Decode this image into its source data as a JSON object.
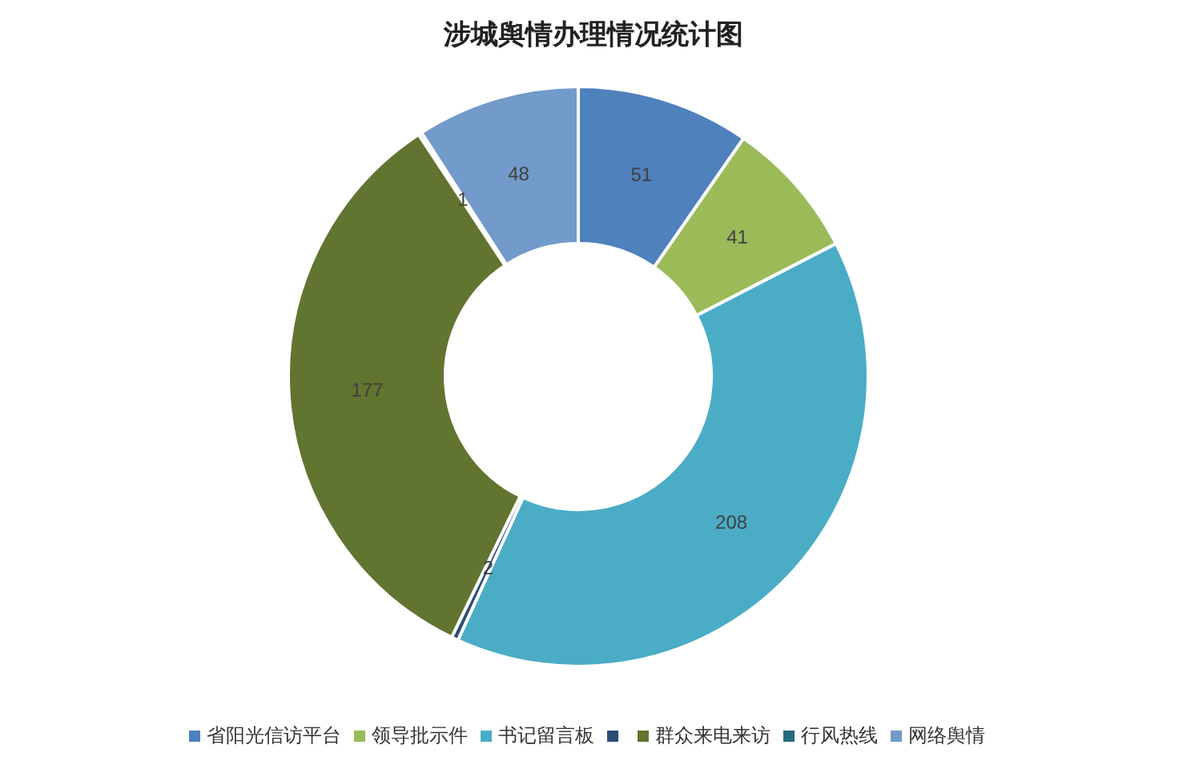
{
  "chart_data": {
    "type": "donut",
    "title": "涉城舆情办理情况统计图",
    "categories": [
      "省阳光信访平台",
      "领导批示件",
      "书记留言板",
      null,
      "群众来电来访",
      "行风热线",
      "网络舆情"
    ],
    "values": [
      51,
      41,
      208,
      2,
      177,
      1,
      48
    ],
    "colors": [
      "#4f81bd",
      "#9bbb59",
      "#4bacc6",
      "#2c4d75",
      "#617430",
      "#276a7c",
      "#729aca"
    ],
    "data_labels": true,
    "legend": "bottom"
  }
}
